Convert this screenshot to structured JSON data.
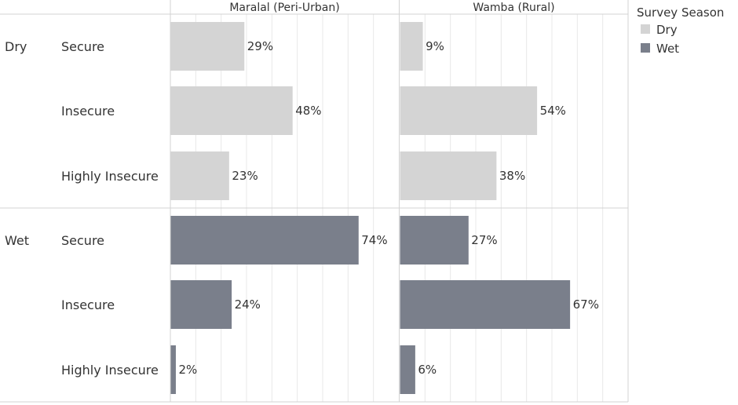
{
  "chart_data": {
    "type": "bar",
    "orientation": "horizontal",
    "panels": [
      "Maralal (Peri-Urban)",
      "Wamba (Rural)"
    ],
    "groups": [
      "Dry",
      "Wet"
    ],
    "categories": [
      "Secure",
      "Insecure",
      "Highly Insecure"
    ],
    "series": [
      {
        "name": "Dry",
        "panel_values": {
          "Maralal (Peri-Urban)": [
            29,
            48,
            23
          ],
          "Wamba (Rural)": [
            9,
            54,
            38
          ]
        }
      },
      {
        "name": "Wet",
        "panel_values": {
          "Maralal (Peri-Urban)": [
            74,
            24,
            2
          ],
          "Wamba (Rural)": [
            27,
            67,
            6
          ]
        }
      }
    ],
    "value_suffix": "%",
    "xlim": [
      0,
      90
    ],
    "grid": true,
    "legend": {
      "title": "Survey Season",
      "placement": "top-right",
      "items": [
        {
          "name": "Dry",
          "color": "#d4d4d4"
        },
        {
          "name": "Wet",
          "color": "#7a7f8b"
        }
      ]
    }
  }
}
